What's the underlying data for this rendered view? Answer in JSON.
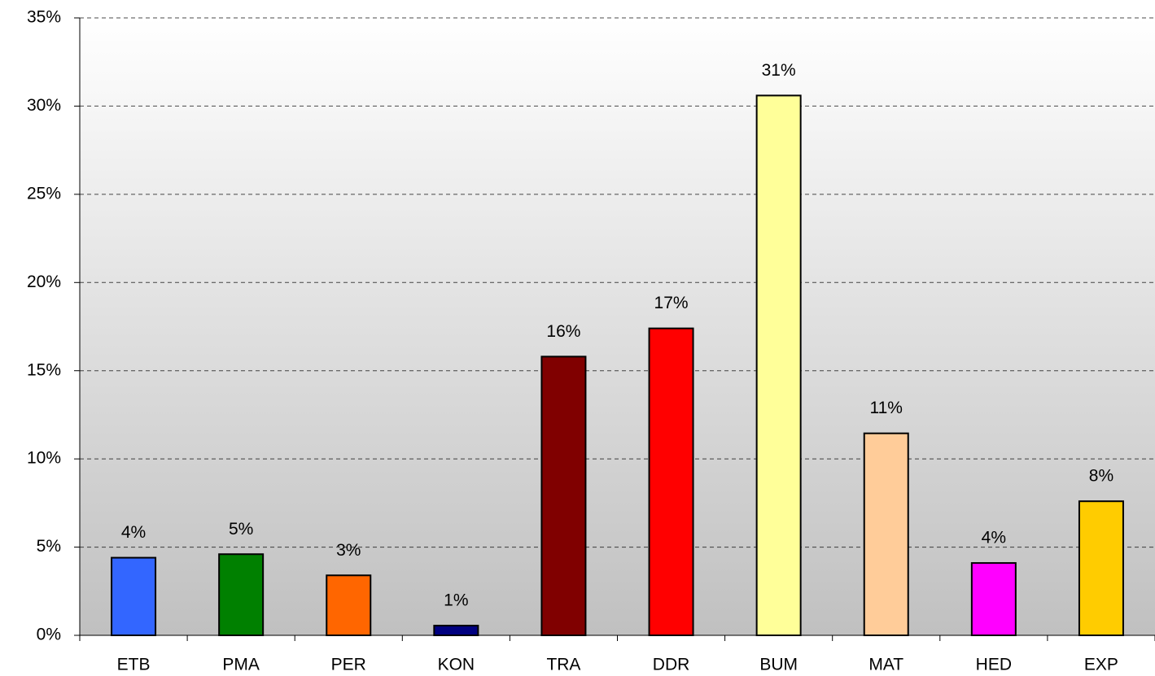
{
  "chart_data": {
    "type": "bar",
    "categories": [
      "ETB",
      "PMA",
      "PER",
      "KON",
      "TRA",
      "DDR",
      "BUM",
      "MAT",
      "HED",
      "EXP"
    ],
    "values": [
      4.4,
      4.6,
      3.4,
      0.55,
      15.8,
      17.4,
      30.6,
      11.45,
      4.1,
      7.6
    ],
    "value_labels": [
      "4%",
      "5%",
      "3%",
      "1%",
      "16%",
      "17%",
      "31%",
      "11%",
      "4%",
      "8%"
    ],
    "colors": [
      "#3366ff",
      "#008000",
      "#ff6600",
      "#000080",
      "#800000",
      "#ff0000",
      "#ffff99",
      "#ffcc99",
      "#ff00ff",
      "#ffcc00"
    ],
    "ylim": [
      0,
      35
    ],
    "yticks": [
      {
        "value": 0,
        "label": "0%"
      },
      {
        "value": 5,
        "label": "5%"
      },
      {
        "value": 10,
        "label": "10%"
      },
      {
        "value": 15,
        "label": "15%"
      },
      {
        "value": 20,
        "label": "20%"
      },
      {
        "value": 25,
        "label": "25%"
      },
      {
        "value": 30,
        "label": "30%"
      },
      {
        "value": 35,
        "label": "35%"
      }
    ],
    "grid": true
  }
}
